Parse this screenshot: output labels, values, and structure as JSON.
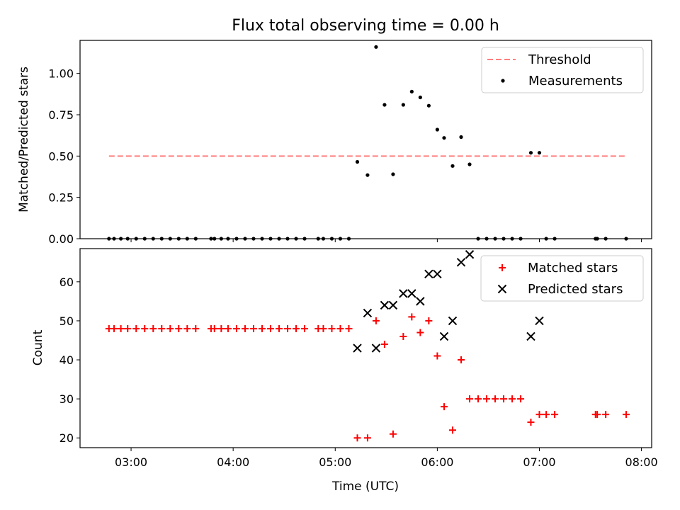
{
  "colors": {
    "threshold": "#ff7f7f",
    "measurement": "#000000",
    "matched": "#ff0000",
    "predicted": "#000000"
  },
  "chart_data": [
    {
      "type": "scatter",
      "title": "Flux total observing time = 0.00 h",
      "xlabel": "",
      "ylabel": "Matched/Predicted stars",
      "xlim": [
        "02:30",
        "08:06"
      ],
      "ylim": [
        0,
        1.2
      ],
      "y_ticks": [
        0.0,
        0.25,
        0.5,
        0.75,
        1.0
      ],
      "y_tick_labels": [
        "0.00",
        "0.25",
        "0.50",
        "0.75",
        "1.00"
      ],
      "x_ticks": [
        "03:00",
        "04:00",
        "05:00",
        "06:00",
        "07:00",
        "08:00"
      ],
      "legend_position": "top-right",
      "legend": [
        "Threshold",
        "Measurements"
      ],
      "series": [
        {
          "name": "Threshold",
          "kind": "dashed-line",
          "points": [
            {
              "x": "02:47",
              "y": 0.5
            },
            {
              "x": "07:51",
              "y": 0.5
            }
          ]
        },
        {
          "name": "Measurements",
          "kind": "dots",
          "points": [
            {
              "x": "02:47",
              "y": 0
            },
            {
              "x": "02:50",
              "y": 0
            },
            {
              "x": "02:54",
              "y": 0
            },
            {
              "x": "02:58",
              "y": 0
            },
            {
              "x": "03:03",
              "y": 0
            },
            {
              "x": "03:08",
              "y": 0
            },
            {
              "x": "03:13",
              "y": 0
            },
            {
              "x": "03:18",
              "y": 0
            },
            {
              "x": "03:23",
              "y": 0
            },
            {
              "x": "03:28",
              "y": 0
            },
            {
              "x": "03:33",
              "y": 0
            },
            {
              "x": "03:38",
              "y": 0
            },
            {
              "x": "03:47",
              "y": 0
            },
            {
              "x": "03:49",
              "y": 0
            },
            {
              "x": "03:53",
              "y": 0
            },
            {
              "x": "03:57",
              "y": 0
            },
            {
              "x": "04:02",
              "y": 0
            },
            {
              "x": "04:07",
              "y": 0
            },
            {
              "x": "04:12",
              "y": 0
            },
            {
              "x": "04:17",
              "y": 0
            },
            {
              "x": "04:22",
              "y": 0
            },
            {
              "x": "04:27",
              "y": 0
            },
            {
              "x": "04:32",
              "y": 0
            },
            {
              "x": "04:37",
              "y": 0
            },
            {
              "x": "04:42",
              "y": 0
            },
            {
              "x": "04:50",
              "y": 0
            },
            {
              "x": "04:53",
              "y": 0
            },
            {
              "x": "04:58",
              "y": 0
            },
            {
              "x": "05:03",
              "y": 0
            },
            {
              "x": "05:08",
              "y": 0
            },
            {
              "x": "05:13",
              "y": 0.465
            },
            {
              "x": "05:19",
              "y": 0.385
            },
            {
              "x": "05:24",
              "y": 1.16
            },
            {
              "x": "05:29",
              "y": 0.81
            },
            {
              "x": "05:34",
              "y": 0.39
            },
            {
              "x": "05:40",
              "y": 0.81
            },
            {
              "x": "05:45",
              "y": 0.89
            },
            {
              "x": "05:50",
              "y": 0.855
            },
            {
              "x": "05:55",
              "y": 0.805
            },
            {
              "x": "06:00",
              "y": 0.66
            },
            {
              "x": "06:04",
              "y": 0.61
            },
            {
              "x": "06:09",
              "y": 0.44
            },
            {
              "x": "06:14",
              "y": 0.615
            },
            {
              "x": "06:19",
              "y": 0.45
            },
            {
              "x": "06:24",
              "y": 0
            },
            {
              "x": "06:29",
              "y": 0
            },
            {
              "x": "06:34",
              "y": 0
            },
            {
              "x": "06:39",
              "y": 0
            },
            {
              "x": "06:44",
              "y": 0
            },
            {
              "x": "06:49",
              "y": 0
            },
            {
              "x": "06:55",
              "y": 0.52
            },
            {
              "x": "07:00",
              "y": 0.52
            },
            {
              "x": "07:04",
              "y": 0
            },
            {
              "x": "07:09",
              "y": 0
            },
            {
              "x": "07:33",
              "y": 0
            },
            {
              "x": "07:34",
              "y": 0
            },
            {
              "x": "07:39",
              "y": 0
            },
            {
              "x": "07:51",
              "y": 0
            }
          ]
        }
      ]
    },
    {
      "type": "scatter",
      "title": "",
      "xlabel": "Time (UTC)",
      "ylabel": "Count",
      "xlim": [
        "02:30",
        "08:06"
      ],
      "ylim": [
        17.5,
        68.5
      ],
      "y_ticks": [
        20,
        30,
        40,
        50,
        60
      ],
      "y_tick_labels": [
        "20",
        "30",
        "40",
        "50",
        "60"
      ],
      "x_ticks": [
        "03:00",
        "04:00",
        "05:00",
        "06:00",
        "07:00",
        "08:00"
      ],
      "x_tick_labels": [
        "03:00",
        "04:00",
        "05:00",
        "06:00",
        "07:00",
        "08:00"
      ],
      "legend_position": "top-right",
      "legend": [
        "Matched stars",
        "Predicted stars"
      ],
      "series": [
        {
          "name": "Matched stars",
          "kind": "plus",
          "points": [
            {
              "x": "02:47",
              "y": 48
            },
            {
              "x": "02:50",
              "y": 48
            },
            {
              "x": "02:54",
              "y": 48
            },
            {
              "x": "02:58",
              "y": 48
            },
            {
              "x": "03:03",
              "y": 48
            },
            {
              "x": "03:08",
              "y": 48
            },
            {
              "x": "03:13",
              "y": 48
            },
            {
              "x": "03:18",
              "y": 48
            },
            {
              "x": "03:23",
              "y": 48
            },
            {
              "x": "03:28",
              "y": 48
            },
            {
              "x": "03:33",
              "y": 48
            },
            {
              "x": "03:38",
              "y": 48
            },
            {
              "x": "03:47",
              "y": 48
            },
            {
              "x": "03:49",
              "y": 48
            },
            {
              "x": "03:53",
              "y": 48
            },
            {
              "x": "03:57",
              "y": 48
            },
            {
              "x": "04:02",
              "y": 48
            },
            {
              "x": "04:07",
              "y": 48
            },
            {
              "x": "04:12",
              "y": 48
            },
            {
              "x": "04:17",
              "y": 48
            },
            {
              "x": "04:22",
              "y": 48
            },
            {
              "x": "04:27",
              "y": 48
            },
            {
              "x": "04:32",
              "y": 48
            },
            {
              "x": "04:37",
              "y": 48
            },
            {
              "x": "04:42",
              "y": 48
            },
            {
              "x": "04:50",
              "y": 48
            },
            {
              "x": "04:53",
              "y": 48
            },
            {
              "x": "04:58",
              "y": 48
            },
            {
              "x": "05:03",
              "y": 48
            },
            {
              "x": "05:08",
              "y": 48
            },
            {
              "x": "05:13",
              "y": 20
            },
            {
              "x": "05:19",
              "y": 20
            },
            {
              "x": "05:24",
              "y": 50
            },
            {
              "x": "05:29",
              "y": 44
            },
            {
              "x": "05:34",
              "y": 21
            },
            {
              "x": "05:40",
              "y": 46
            },
            {
              "x": "05:45",
              "y": 51
            },
            {
              "x": "05:50",
              "y": 47
            },
            {
              "x": "05:55",
              "y": 50
            },
            {
              "x": "06:00",
              "y": 41
            },
            {
              "x": "06:04",
              "y": 28
            },
            {
              "x": "06:09",
              "y": 22
            },
            {
              "x": "06:14",
              "y": 40
            },
            {
              "x": "06:19",
              "y": 30
            },
            {
              "x": "06:24",
              "y": 30
            },
            {
              "x": "06:29",
              "y": 30
            },
            {
              "x": "06:34",
              "y": 30
            },
            {
              "x": "06:39",
              "y": 30
            },
            {
              "x": "06:44",
              "y": 30
            },
            {
              "x": "06:49",
              "y": 30
            },
            {
              "x": "06:55",
              "y": 24
            },
            {
              "x": "07:00",
              "y": 26
            },
            {
              "x": "07:04",
              "y": 26
            },
            {
              "x": "07:09",
              "y": 26
            },
            {
              "x": "07:33",
              "y": 26
            },
            {
              "x": "07:34",
              "y": 26
            },
            {
              "x": "07:39",
              "y": 26
            },
            {
              "x": "07:51",
              "y": 26
            }
          ]
        },
        {
          "name": "Predicted stars",
          "kind": "x",
          "points": [
            {
              "x": "05:13",
              "y": 43
            },
            {
              "x": "05:19",
              "y": 52
            },
            {
              "x": "05:24",
              "y": 43
            },
            {
              "x": "05:29",
              "y": 54
            },
            {
              "x": "05:34",
              "y": 54
            },
            {
              "x": "05:40",
              "y": 57
            },
            {
              "x": "05:45",
              "y": 57
            },
            {
              "x": "05:50",
              "y": 55
            },
            {
              "x": "05:55",
              "y": 62
            },
            {
              "x": "06:00",
              "y": 62
            },
            {
              "x": "06:04",
              "y": 46
            },
            {
              "x": "06:09",
              "y": 50
            },
            {
              "x": "06:14",
              "y": 65
            },
            {
              "x": "06:19",
              "y": 67
            },
            {
              "x": "06:55",
              "y": 46
            },
            {
              "x": "07:00",
              "y": 50
            }
          ]
        }
      ]
    }
  ]
}
